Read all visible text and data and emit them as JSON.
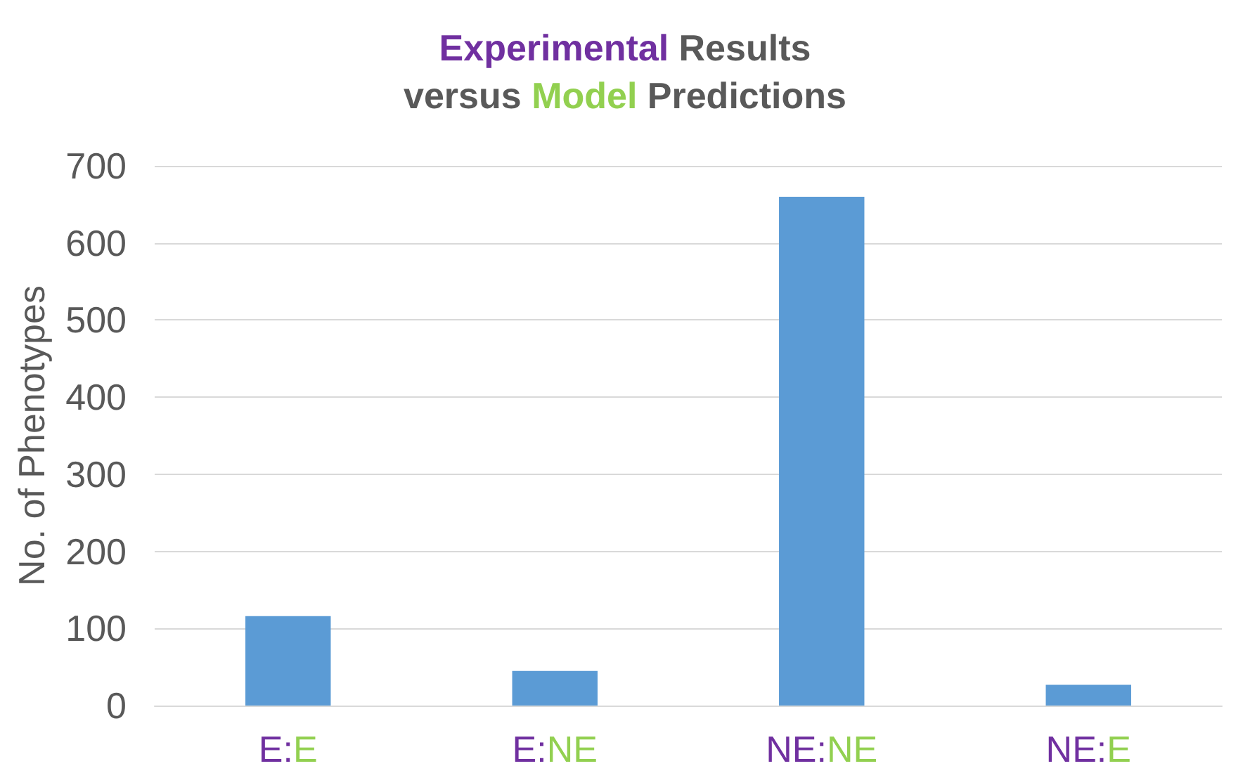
{
  "chart_data": {
    "type": "bar",
    "title": "Experimental Results\nversus Model Predictions",
    "ylabel": "No. of Phenotypes",
    "categories": [
      "E:E",
      "E:NE",
      "NE:NE",
      "NE:E"
    ],
    "values": [
      116,
      45,
      660,
      27
    ],
    "color": "#5b9bd5",
    "ylim": [
      0,
      700
    ],
    "yticks": [
      0,
      100,
      200,
      300,
      400,
      500,
      600,
      700
    ],
    "grid": "y"
  }
}
